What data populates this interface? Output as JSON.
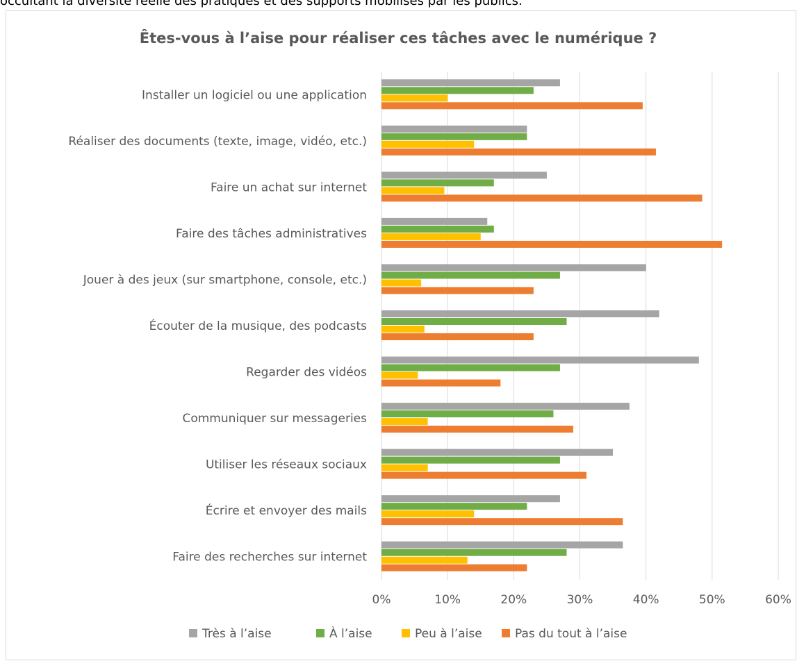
{
  "page_text": "occultant la diversité réelle des pratiques et des supports mobilisés par les publics.",
  "chart_data": {
    "type": "hbar",
    "title": "Êtes-vous à l’aise pour réaliser ces tâches avec le numérique ?",
    "categories": [
      "Installer un logiciel ou une application",
      "Réaliser des documents (texte, image, vidéo, etc.)",
      "Faire un achat sur internet",
      "Faire des tâches administratives",
      "Jouer à des jeux (sur smartphone, console, etc.)",
      "Écouter de la musique, des podcasts",
      "Regarder des vidéos",
      "Communiquer sur messageries",
      "Utiliser les réseaux sociaux",
      "Écrire et envoyer des mails",
      "Faire des recherches sur internet"
    ],
    "series": [
      {
        "name": "Très à l’aise",
        "color": "#a5a5a5",
        "values": [
          27,
          22,
          25,
          16,
          40,
          42,
          48,
          37.5,
          35,
          27,
          36.5
        ]
      },
      {
        "name": "À l’aise",
        "color": "#70ad47",
        "values": [
          23,
          22,
          17,
          17,
          27,
          28,
          27,
          26,
          27,
          22,
          28
        ]
      },
      {
        "name": "Peu à l’aise",
        "color": "#ffc000",
        "values": [
          10,
          14,
          9.5,
          15,
          6,
          6.5,
          5.5,
          7,
          7,
          14,
          13
        ]
      },
      {
        "name": "Pas du tout à l’aise",
        "color": "#ed7d31",
        "values": [
          39.5,
          41.5,
          48.5,
          51.5,
          23,
          23,
          18,
          29,
          31,
          36.5,
          22
        ]
      }
    ],
    "xlim": [
      0,
      60
    ],
    "xticks": [
      {
        "value": 0,
        "label": "0%"
      },
      {
        "value": 10,
        "label": "10%"
      },
      {
        "value": 20,
        "label": "20%"
      },
      {
        "value": 30,
        "label": "30%"
      },
      {
        "value": 40,
        "label": "40%"
      },
      {
        "value": 50,
        "label": "50%"
      },
      {
        "value": 60,
        "label": "60%"
      }
    ],
    "grid": true,
    "legend": "bottom"
  }
}
